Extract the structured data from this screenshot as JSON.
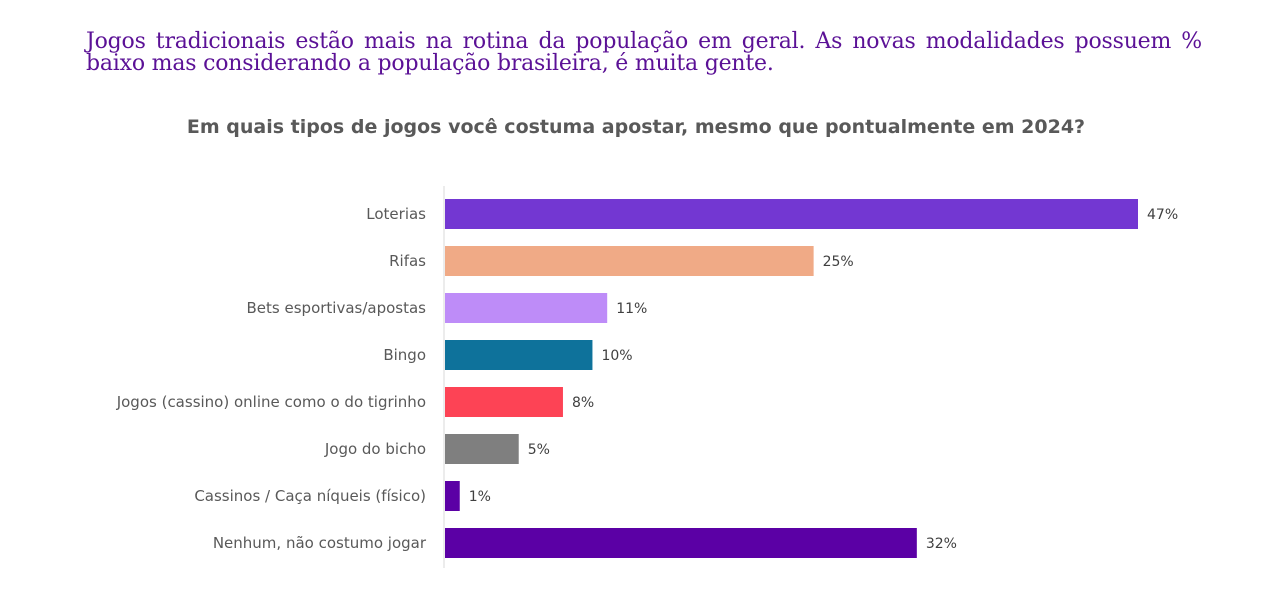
{
  "headline": "Jogos tradicionais estão mais na rotina da população em geral. As novas modalidades possuem % baixo mas considerando a população brasileira, é muita gente.",
  "chart_data": {
    "type": "bar",
    "orientation": "horizontal",
    "title": "Em quais tipos de jogos você costuma apostar, mesmo que pontualmente em 2024?",
    "xlabel": "",
    "ylabel": "",
    "xlim": [
      0,
      50
    ],
    "grid": false,
    "legend": "none",
    "value_suffix": "%",
    "categories": [
      "Loterias",
      "Rifas",
      "Bets esportivas/apostas",
      "Bingo",
      "Jogos (cassino) online como o do tigrinho",
      "Jogo do bicho",
      "Cassinos / Caça níqueis (físico)",
      "Nenhum, não costumo jogar"
    ],
    "values": [
      47,
      25,
      11,
      10,
      8,
      5,
      1,
      32
    ],
    "data_labels": [
      "47%",
      "25%",
      "11%",
      "10%",
      "8%",
      "5%",
      "1%",
      "32%"
    ],
    "colors": [
      "#7337d2",
      "#f0aa86",
      "#be8cf8",
      "#0e729b",
      "#fd4355",
      "#7f7f7f",
      "#5b00a5",
      "#5b00a5"
    ],
    "axis_color": "#d9d9d9"
  }
}
